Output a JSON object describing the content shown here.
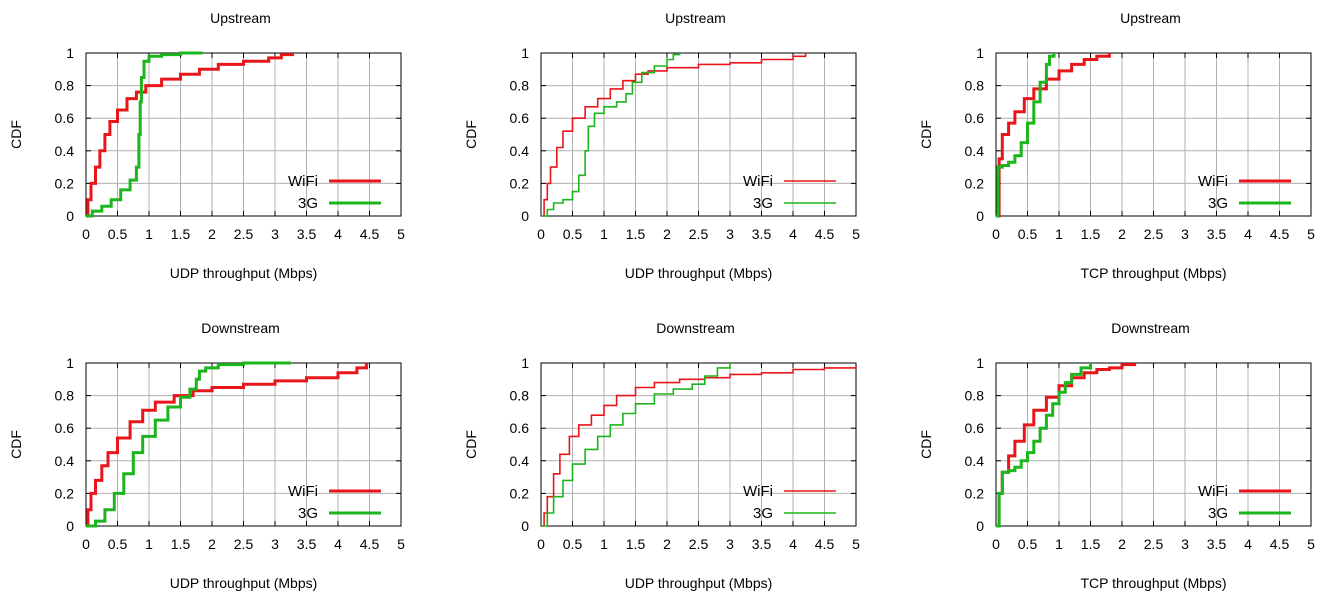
{
  "palette": {
    "wifi": "#e8161b",
    "g3": "#1db51d",
    "grid": "#b0b0b0",
    "axis": "#000000"
  },
  "chart_data": [
    {
      "type": "line",
      "title": "Upstream",
      "xlabel": "UDP throughput (Mbps)",
      "ylabel": "CDF",
      "xlim": [
        0,
        5
      ],
      "ylim": [
        0,
        1
      ],
      "xticks": [
        "0",
        "0.5",
        "1",
        "1.5",
        "2",
        "2.5",
        "3",
        "3.5",
        "4",
        "4.5",
        "5"
      ],
      "yticks": [
        "0",
        "0.2",
        "0.4",
        "0.6",
        "0.8",
        "1"
      ],
      "grid": true,
      "legend": "bottom-right",
      "thick": true,
      "series": [
        {
          "name": "WiFi",
          "color": "#e8161b",
          "x": [
            0,
            0.03,
            0.08,
            0.15,
            0.22,
            0.3,
            0.38,
            0.5,
            0.65,
            0.8,
            0.95,
            1.2,
            1.5,
            1.8,
            2.1,
            2.5,
            2.9,
            3.1,
            3.28
          ],
          "y": [
            0,
            0.1,
            0.2,
            0.3,
            0.4,
            0.5,
            0.58,
            0.65,
            0.72,
            0.76,
            0.8,
            0.84,
            0.87,
            0.9,
            0.93,
            0.95,
            0.97,
            0.99,
            1.0
          ]
        },
        {
          "name": "3G",
          "color": "#1db51d",
          "x": [
            0,
            0.1,
            0.25,
            0.4,
            0.55,
            0.7,
            0.8,
            0.84,
            0.86,
            0.88,
            0.92,
            1.0,
            1.2,
            1.5,
            1.85
          ],
          "y": [
            0,
            0.03,
            0.06,
            0.1,
            0.16,
            0.22,
            0.3,
            0.5,
            0.7,
            0.85,
            0.95,
            0.98,
            0.99,
            1.0,
            1.0
          ]
        }
      ]
    },
    {
      "type": "line",
      "title": "Upstream",
      "xlabel": "UDP throughput (Mbps)",
      "ylabel": "CDF",
      "xlim": [
        0,
        5
      ],
      "ylim": [
        0,
        1
      ],
      "xticks": [
        "0",
        "0.5",
        "1",
        "1.5",
        "2",
        "2.5",
        "3",
        "3.5",
        "4",
        "4.5",
        "5"
      ],
      "yticks": [
        "0",
        "0.2",
        "0.4",
        "0.6",
        "0.8",
        "1"
      ],
      "grid": true,
      "legend": "bottom-right",
      "thick": false,
      "series": [
        {
          "name": "WiFi",
          "color": "#e8161b",
          "x": [
            0,
            0.05,
            0.1,
            0.15,
            0.25,
            0.35,
            0.5,
            0.7,
            0.9,
            1.1,
            1.3,
            1.5,
            1.7,
            2.0,
            2.5,
            3.0,
            3.5,
            4.0,
            4.2
          ],
          "y": [
            0,
            0.1,
            0.2,
            0.3,
            0.42,
            0.52,
            0.6,
            0.67,
            0.72,
            0.78,
            0.83,
            0.87,
            0.89,
            0.91,
            0.93,
            0.94,
            0.96,
            0.98,
            1.0
          ]
        },
        {
          "name": "3G",
          "color": "#1db51d",
          "x": [
            0,
            0.1,
            0.2,
            0.35,
            0.5,
            0.6,
            0.7,
            0.75,
            0.85,
            1.0,
            1.2,
            1.35,
            1.45,
            1.6,
            1.8,
            2.0,
            2.1,
            2.2
          ],
          "y": [
            0,
            0.04,
            0.08,
            0.1,
            0.15,
            0.25,
            0.4,
            0.55,
            0.63,
            0.67,
            0.7,
            0.75,
            0.82,
            0.88,
            0.92,
            0.96,
            0.99,
            1.0
          ]
        }
      ]
    },
    {
      "type": "line",
      "title": "Upstream",
      "xlabel": "TCP throughput (Mbps)",
      "ylabel": "CDF",
      "xlim": [
        0,
        5
      ],
      "ylim": [
        0,
        1
      ],
      "xticks": [
        "0",
        "0.5",
        "1",
        "1.5",
        "2",
        "2.5",
        "3",
        "3.5",
        "4",
        "4.5",
        "5"
      ],
      "yticks": [
        "0",
        "0.2",
        "0.4",
        "0.6",
        "0.8",
        "1"
      ],
      "grid": true,
      "legend": "bottom-right",
      "thick": true,
      "series": [
        {
          "name": "WiFi",
          "color": "#e8161b",
          "x": [
            0,
            0.05,
            0.1,
            0.2,
            0.3,
            0.45,
            0.6,
            0.8,
            1.0,
            1.2,
            1.4,
            1.6,
            1.8
          ],
          "y": [
            0,
            0.35,
            0.5,
            0.57,
            0.64,
            0.72,
            0.78,
            0.84,
            0.89,
            0.93,
            0.96,
            0.98,
            1.0
          ]
        },
        {
          "name": "3G",
          "color": "#1db51d",
          "x": [
            0,
            0.03,
            0.1,
            0.2,
            0.3,
            0.4,
            0.5,
            0.6,
            0.7,
            0.8,
            0.85,
            0.92
          ],
          "y": [
            0,
            0.3,
            0.31,
            0.33,
            0.37,
            0.45,
            0.57,
            0.7,
            0.82,
            0.93,
            0.98,
            1.0
          ]
        }
      ]
    },
    {
      "type": "line",
      "title": "Downstream",
      "xlabel": "UDP throughput (Mbps)",
      "ylabel": "CDF",
      "xlim": [
        0,
        5
      ],
      "ylim": [
        0,
        1
      ],
      "xticks": [
        "0",
        "0.5",
        "1",
        "1.5",
        "2",
        "2.5",
        "3",
        "3.5",
        "4",
        "4.5",
        "5"
      ],
      "yticks": [
        "0",
        "0.2",
        "0.4",
        "0.6",
        "0.8",
        "1"
      ],
      "grid": true,
      "legend": "bottom-right",
      "thick": true,
      "series": [
        {
          "name": "WiFi",
          "color": "#e8161b",
          "x": [
            0,
            0.03,
            0.08,
            0.15,
            0.25,
            0.35,
            0.5,
            0.7,
            0.9,
            1.1,
            1.4,
            1.7,
            2.0,
            2.5,
            3.0,
            3.5,
            4.0,
            4.3,
            4.45
          ],
          "y": [
            0,
            0.1,
            0.2,
            0.28,
            0.37,
            0.45,
            0.54,
            0.64,
            0.71,
            0.76,
            0.8,
            0.83,
            0.85,
            0.87,
            0.89,
            0.91,
            0.94,
            0.97,
            1.0
          ]
        },
        {
          "name": "3G",
          "color": "#1db51d",
          "x": [
            0,
            0.15,
            0.3,
            0.45,
            0.6,
            0.75,
            0.9,
            1.1,
            1.3,
            1.5,
            1.65,
            1.75,
            1.8,
            1.9,
            2.1,
            2.5,
            3.0,
            3.25
          ],
          "y": [
            0,
            0.03,
            0.1,
            0.2,
            0.32,
            0.45,
            0.55,
            0.65,
            0.73,
            0.79,
            0.84,
            0.9,
            0.95,
            0.97,
            0.99,
            1.0,
            1.0,
            1.0
          ]
        }
      ]
    },
    {
      "type": "line",
      "title": "Downstream",
      "xlabel": "UDP throughput (Mbps)",
      "ylabel": "CDF",
      "xlim": [
        0,
        5
      ],
      "ylim": [
        0,
        1
      ],
      "xticks": [
        "0",
        "0.5",
        "1",
        "1.5",
        "2",
        "2.5",
        "3",
        "3.5",
        "4",
        "4.5",
        "5"
      ],
      "yticks": [
        "0",
        "0.2",
        "0.4",
        "0.6",
        "0.8",
        "1"
      ],
      "grid": true,
      "legend": "bottom-right",
      "thick": false,
      "series": [
        {
          "name": "WiFi",
          "color": "#e8161b",
          "x": [
            0,
            0.05,
            0.1,
            0.2,
            0.3,
            0.45,
            0.6,
            0.8,
            1.0,
            1.2,
            1.5,
            1.8,
            2.2,
            2.6,
            3.0,
            3.5,
            4.0,
            4.5,
            5.0
          ],
          "y": [
            0,
            0.08,
            0.18,
            0.32,
            0.44,
            0.55,
            0.62,
            0.68,
            0.74,
            0.8,
            0.85,
            0.88,
            0.9,
            0.91,
            0.93,
            0.94,
            0.96,
            0.97,
            0.98
          ]
        },
        {
          "name": "3G",
          "color": "#1db51d",
          "x": [
            0,
            0.1,
            0.2,
            0.35,
            0.5,
            0.7,
            0.9,
            1.1,
            1.3,
            1.5,
            1.8,
            2.1,
            2.4,
            2.6,
            2.8,
            3.0
          ],
          "y": [
            0,
            0.08,
            0.18,
            0.28,
            0.38,
            0.47,
            0.55,
            0.62,
            0.69,
            0.75,
            0.81,
            0.84,
            0.87,
            0.92,
            0.97,
            1.0
          ]
        }
      ]
    },
    {
      "type": "line",
      "title": "Downstream",
      "xlabel": "TCP throughput (Mbps)",
      "ylabel": "CDF",
      "xlim": [
        0,
        5
      ],
      "ylim": [
        0,
        1
      ],
      "xticks": [
        "0",
        "0.5",
        "1",
        "1.5",
        "2",
        "2.5",
        "3",
        "3.5",
        "4",
        "4.5",
        "5"
      ],
      "yticks": [
        "0",
        "0.2",
        "0.4",
        "0.6",
        "0.8",
        "1"
      ],
      "grid": true,
      "legend": "bottom-right",
      "thick": true,
      "series": [
        {
          "name": "WiFi",
          "color": "#e8161b",
          "x": [
            0,
            0.05,
            0.1,
            0.2,
            0.3,
            0.45,
            0.6,
            0.8,
            1.0,
            1.2,
            1.4,
            1.6,
            1.8,
            2.0,
            2.2
          ],
          "y": [
            0,
            0.2,
            0.33,
            0.43,
            0.52,
            0.62,
            0.71,
            0.79,
            0.86,
            0.91,
            0.94,
            0.96,
            0.97,
            0.99,
            1.0
          ]
        },
        {
          "name": "3G",
          "color": "#1db51d",
          "x": [
            0,
            0.05,
            0.1,
            0.2,
            0.3,
            0.4,
            0.5,
            0.6,
            0.7,
            0.8,
            0.9,
            1.0,
            1.1,
            1.2,
            1.35,
            1.5
          ],
          "y": [
            0,
            0.2,
            0.33,
            0.34,
            0.36,
            0.4,
            0.45,
            0.52,
            0.6,
            0.68,
            0.75,
            0.82,
            0.88,
            0.93,
            0.97,
            1.0
          ]
        }
      ]
    }
  ]
}
